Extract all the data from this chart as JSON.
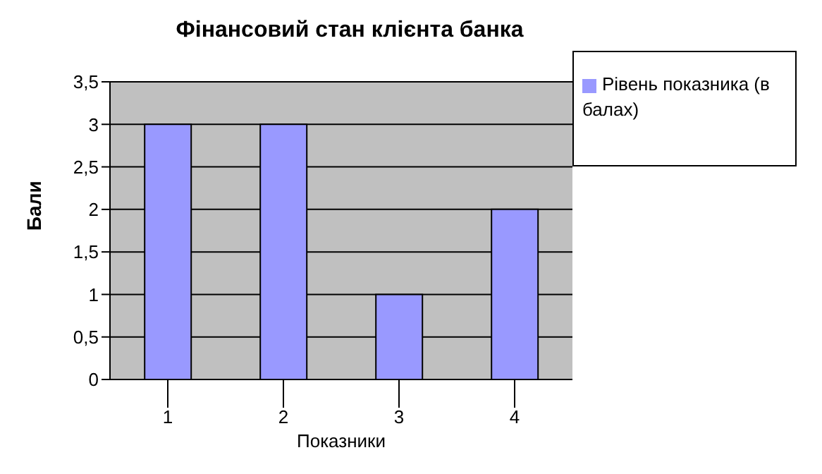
{
  "chart_data": {
    "type": "bar",
    "title": "Фінансовий стан клієнта банка",
    "xlabel": "Показники",
    "ylabel": "Бали",
    "categories": [
      "1",
      "2",
      "3",
      "4"
    ],
    "series": [
      {
        "name": "Рівень показника (в балах)",
        "color": "#9999ff",
        "values": [
          3,
          3,
          1,
          2
        ]
      }
    ],
    "ylim": [
      0,
      3.5
    ],
    "yticks": [
      {
        "value": 0,
        "label": "0"
      },
      {
        "value": 0.5,
        "label": "0,5"
      },
      {
        "value": 1,
        "label": "1"
      },
      {
        "value": 1.5,
        "label": "1,5"
      },
      {
        "value": 2,
        "label": "2"
      },
      {
        "value": 2.5,
        "label": "2,5"
      },
      {
        "value": 3,
        "label": "3"
      },
      {
        "value": 3.5,
        "label": "3,5"
      }
    ],
    "grid": "y",
    "legend": "right"
  }
}
